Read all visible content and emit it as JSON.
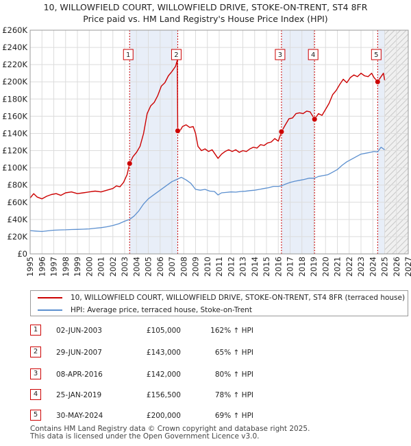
{
  "title_line1": "10, WILLOWFIELD COURT, WILLOWFIELD DRIVE, STOKE-ON-TRENT, ST4 8FR",
  "title_line2": "Price paid vs. HM Land Registry's House Price Index (HPI)",
  "colors": {
    "property": "#cc0000",
    "hpi": "#5b8fcf",
    "band": "#e8eef8",
    "vline": "#cc0000"
  },
  "chart_data": {
    "type": "line",
    "xlim": [
      1995,
      2027
    ],
    "ylim": [
      0,
      260000
    ],
    "y_ticks": [
      0,
      20000,
      40000,
      60000,
      80000,
      100000,
      120000,
      140000,
      160000,
      180000,
      200000,
      220000,
      240000,
      260000
    ],
    "y_tick_labels": [
      "£0",
      "£20K",
      "£40K",
      "£60K",
      "£80K",
      "£100K",
      "£120K",
      "£140K",
      "£160K",
      "£180K",
      "£200K",
      "£220K",
      "£240K",
      "£260K"
    ],
    "x_ticks": [
      "1995",
      "1996",
      "1997",
      "1998",
      "1999",
      "2000",
      "2001",
      "2002",
      "2003",
      "2004",
      "2005",
      "2006",
      "2007",
      "2008",
      "2009",
      "2010",
      "2011",
      "2012",
      "2013",
      "2014",
      "2015",
      "2016",
      "2017",
      "2018",
      "2019",
      "2020",
      "2021",
      "2022",
      "2023",
      "2024",
      "2025",
      "2026",
      "2027"
    ],
    "grid": true,
    "hatch_from": 2025.0,
    "shaded_bands": [
      [
        2003.42,
        2007.49
      ],
      [
        2016.27,
        2019.07
      ],
      [
        2024.41,
        2025.0
      ]
    ],
    "series": [
      {
        "name": "10, WILLOWFIELD COURT, WILLOWFIELD DRIVE, STOKE-ON-TRENT, ST4 8FR (terraced house)",
        "color": "#cc0000",
        "x": [
          1995.0,
          1995.3,
          1995.6,
          1996.0,
          1996.4,
          1996.8,
          1997.2,
          1997.6,
          1998.0,
          1998.5,
          1999.0,
          1999.5,
          2000.0,
          2000.5,
          2001.0,
          2001.5,
          2002.0,
          2002.3,
          2002.6,
          2002.9,
          2003.2,
          2003.42,
          2003.7,
          2004.0,
          2004.3,
          2004.6,
          2004.9,
          2005.2,
          2005.5,
          2005.8,
          2006.1,
          2006.4,
          2006.7,
          2007.0,
          2007.3,
          2007.45,
          2007.49,
          2007.6,
          2007.9,
          2008.2,
          2008.5,
          2008.8,
          2009.0,
          2009.2,
          2009.5,
          2009.8,
          2010.1,
          2010.4,
          2010.7,
          2010.9,
          2011.2,
          2011.5,
          2011.8,
          2012.1,
          2012.4,
          2012.7,
          2013.0,
          2013.3,
          2013.6,
          2013.9,
          2014.2,
          2014.5,
          2014.8,
          2015.1,
          2015.4,
          2015.7,
          2016.0,
          2016.27,
          2016.6,
          2016.9,
          2017.2,
          2017.5,
          2017.8,
          2018.1,
          2018.4,
          2018.7,
          2019.07,
          2019.4,
          2019.7,
          2020.0,
          2020.3,
          2020.6,
          2020.9,
          2021.2,
          2021.5,
          2021.8,
          2022.1,
          2022.4,
          2022.7,
          2023.0,
          2023.3,
          2023.6,
          2023.9,
          2024.1,
          2024.41,
          2024.7,
          2024.9,
          2025.0
        ],
        "y": [
          65000,
          70000,
          66000,
          64000,
          67000,
          69000,
          70000,
          68000,
          71000,
          72000,
          70000,
          71000,
          72000,
          73000,
          72000,
          74000,
          76000,
          79000,
          78000,
          83000,
          92000,
          105000,
          113000,
          118000,
          125000,
          140000,
          163000,
          172000,
          176000,
          184000,
          195000,
          199000,
          207000,
          212000,
          218000,
          225000,
          143000,
          141000,
          148000,
          150000,
          147000,
          148000,
          140000,
          125000,
          120000,
          122000,
          119000,
          121000,
          115000,
          111000,
          116000,
          119000,
          121000,
          119000,
          121000,
          118000,
          120000,
          119000,
          122000,
          124000,
          123000,
          127000,
          126000,
          129000,
          130000,
          134000,
          131000,
          142000,
          150000,
          157000,
          158000,
          163000,
          164000,
          163000,
          166000,
          165000,
          156500,
          163000,
          161000,
          168000,
          175000,
          185000,
          190000,
          197000,
          203000,
          199000,
          205000,
          208000,
          206000,
          210000,
          207000,
          206000,
          210000,
          205000,
          200000,
          206000,
          210000,
          202000
        ]
      },
      {
        "name": "HPI: Average price, terraced house, Stoke-on-Trent",
        "color": "#5b8fcf",
        "x": [
          1995.0,
          1995.5,
          1996.0,
          1996.5,
          1997.0,
          1997.5,
          1998.0,
          1998.5,
          1999.0,
          1999.5,
          2000.0,
          2000.5,
          2001.0,
          2001.5,
          2002.0,
          2002.5,
          2003.0,
          2003.42,
          2003.8,
          2004.2,
          2004.6,
          2005.0,
          2005.4,
          2005.8,
          2006.2,
          2006.6,
          2007.0,
          2007.49,
          2007.8,
          2008.2,
          2008.6,
          2009.0,
          2009.4,
          2009.8,
          2010.2,
          2010.6,
          2010.9,
          2011.2,
          2011.6,
          2012.0,
          2012.4,
          2012.8,
          2013.2,
          2013.6,
          2014.0,
          2014.4,
          2014.8,
          2015.2,
          2015.6,
          2016.0,
          2016.27,
          2016.6,
          2017.0,
          2017.4,
          2017.8,
          2018.2,
          2018.6,
          2019.07,
          2019.4,
          2019.8,
          2020.2,
          2020.6,
          2021.0,
          2021.4,
          2021.8,
          2022.2,
          2022.6,
          2023.0,
          2023.4,
          2023.8,
          2024.1,
          2024.41,
          2024.7,
          2025.0
        ],
        "y": [
          27000,
          26500,
          26000,
          26800,
          27500,
          27800,
          28000,
          28300,
          28500,
          28700,
          29000,
          29800,
          30500,
          31500,
          33000,
          35000,
          38000,
          40000,
          44000,
          50000,
          58000,
          64000,
          68000,
          72000,
          76000,
          80000,
          84000,
          87000,
          89000,
          86000,
          82000,
          75000,
          74000,
          75000,
          73000,
          72500,
          68500,
          71000,
          71500,
          72000,
          71800,
          72500,
          72800,
          73500,
          74000,
          75000,
          76000,
          77000,
          78500,
          78500,
          79000,
          81000,
          83000,
          84500,
          85500,
          86500,
          88000,
          88000,
          90000,
          91000,
          92000,
          95000,
          98000,
          103000,
          107000,
          110000,
          113000,
          116000,
          117000,
          118000,
          119000,
          118500,
          124000,
          121000
        ]
      }
    ],
    "sales": [
      {
        "num": "1",
        "x": 2003.42,
        "y": 105000
      },
      {
        "num": "2",
        "x": 2007.49,
        "y": 143000
      },
      {
        "num": "3",
        "x": 2016.27,
        "y": 142000
      },
      {
        "num": "4",
        "x": 2019.07,
        "y": 156500
      },
      {
        "num": "5",
        "x": 2024.41,
        "y": 200000
      }
    ]
  },
  "legend": {
    "property_label": "10, WILLOWFIELD COURT, WILLOWFIELD DRIVE, STOKE-ON-TRENT, ST4 8FR (terraced house)",
    "hpi_label": "HPI: Average price, terraced house, Stoke-on-Trent"
  },
  "table": [
    {
      "num": "1",
      "date": "02-JUN-2003",
      "price": "£105,000",
      "hpi": "162% ↑ HPI"
    },
    {
      "num": "2",
      "date": "29-JUN-2007",
      "price": "£143,000",
      "hpi": "65% ↑ HPI"
    },
    {
      "num": "3",
      "date": "08-APR-2016",
      "price": "£142,000",
      "hpi": "80% ↑ HPI"
    },
    {
      "num": "4",
      "date": "25-JAN-2019",
      "price": "£156,500",
      "hpi": "78% ↑ HPI"
    },
    {
      "num": "5",
      "date": "30-MAY-2024",
      "price": "£200,000",
      "hpi": "69% ↑ HPI"
    }
  ],
  "footer_line1": "Contains HM Land Registry data © Crown copyright and database right 2025.",
  "footer_line2": "This data is licensed under the Open Government Licence v3.0."
}
